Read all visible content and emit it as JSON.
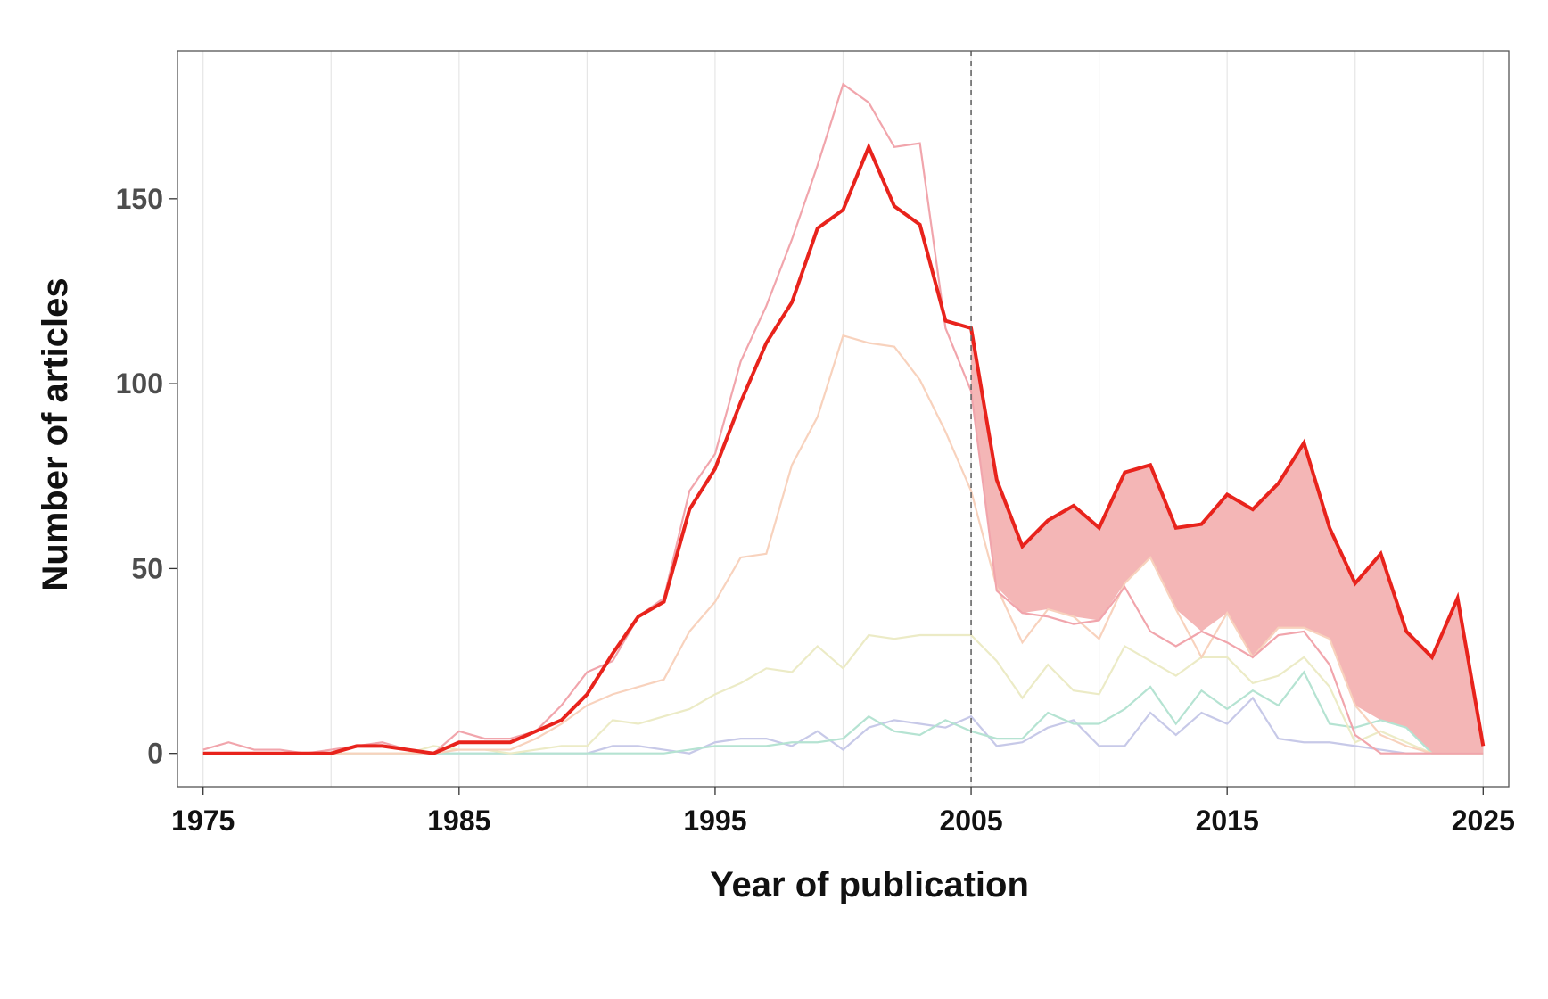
{
  "chart_data": {
    "type": "line",
    "title": "",
    "xlabel": "Year of publication",
    "ylabel": "Number of articles",
    "xlim": [
      1974,
      2026
    ],
    "ylim": [
      -9,
      190
    ],
    "xticks": [
      1975,
      1985,
      1995,
      2005,
      2015,
      2025
    ],
    "yticks": [
      0,
      50,
      100,
      150
    ],
    "grid": "vertical",
    "legend": "none",
    "annotations": [
      {
        "type": "vline",
        "x": 2005,
        "style": "dashed",
        "color": "#666666"
      },
      {
        "type": "band",
        "between": [
          "total",
          "top-lower-series"
        ],
        "x_from": 2005,
        "color": "#f4b6b6"
      }
    ],
    "x": [
      1975,
      1976,
      1977,
      1978,
      1979,
      1980,
      1981,
      1982,
      1983,
      1984,
      1985,
      1986,
      1987,
      1988,
      1989,
      1990,
      1991,
      1992,
      1993,
      1994,
      1995,
      1996,
      1997,
      1998,
      1999,
      2000,
      2001,
      2002,
      2003,
      2004,
      2005,
      2006,
      2007,
      2008,
      2009,
      2010,
      2011,
      2012,
      2013,
      2014,
      2015,
      2016,
      2017,
      2018,
      2019,
      2020,
      2021,
      2022,
      2023,
      2024,
      2025
    ],
    "series": [
      {
        "key": "purple",
        "color": "#c7c9e8",
        "width": 2.2,
        "values": [
          0,
          0,
          0,
          0,
          0,
          0,
          0,
          0,
          0,
          0,
          0,
          0,
          0,
          0,
          0,
          0,
          2,
          2,
          1,
          0,
          3,
          4,
          4,
          2,
          6,
          1,
          7,
          9,
          8,
          7,
          10,
          2,
          3,
          7,
          9,
          2,
          2,
          11,
          5,
          11,
          8,
          15,
          4,
          3,
          3,
          2,
          1,
          0,
          0,
          0,
          0
        ]
      },
      {
        "key": "green",
        "color": "#b5e3d2",
        "width": 2.2,
        "values": [
          0,
          0,
          0,
          0,
          0,
          0,
          0,
          0,
          0,
          0,
          0,
          0,
          0,
          0,
          0,
          0,
          0,
          0,
          0,
          1,
          2,
          2,
          2,
          3,
          3,
          4,
          10,
          6,
          5,
          9,
          6,
          4,
          4,
          11,
          8,
          8,
          12,
          18,
          8,
          17,
          12,
          17,
          13,
          22,
          8,
          7,
          9,
          7,
          0,
          0,
          0
        ]
      },
      {
        "key": "yellow",
        "color": "#ecebc6",
        "width": 2.2,
        "values": [
          0,
          0,
          0,
          0,
          0,
          0,
          0,
          0,
          0,
          2,
          1,
          1,
          0,
          1,
          2,
          2,
          9,
          8,
          10,
          12,
          16,
          19,
          23,
          22,
          29,
          23,
          32,
          31,
          32,
          32,
          32,
          25,
          15,
          24,
          17,
          16,
          29,
          25,
          21,
          26,
          26,
          19,
          21,
          26,
          18,
          3,
          6,
          3,
          0,
          0,
          0
        ]
      },
      {
        "key": "peach",
        "color": "#f8d2bd",
        "width": 2.2,
        "values": [
          0,
          0,
          0,
          0,
          0,
          0,
          0,
          0,
          0,
          0,
          1,
          1,
          1,
          4,
          8,
          13,
          16,
          18,
          20,
          33,
          41,
          53,
          54,
          78,
          91,
          113,
          111,
          110,
          101,
          87,
          71,
          45,
          30,
          39,
          37,
          31,
          46,
          53,
          39,
          26,
          38,
          26,
          34,
          34,
          31,
          13,
          5,
          2,
          0,
          0,
          0
        ]
      },
      {
        "key": "pink",
        "color": "#f1a5ac",
        "width": 2.2,
        "values": [
          1,
          3,
          1,
          1,
          0,
          1,
          2,
          3,
          1,
          0,
          6,
          4,
          4,
          6,
          13,
          22,
          25,
          37,
          42,
          71,
          81,
          106,
          121,
          139,
          159,
          181,
          176,
          164,
          165,
          115,
          98,
          44,
          38,
          37,
          35,
          36,
          45,
          33,
          29,
          33,
          30,
          26,
          32,
          33,
          24,
          5,
          0,
          0,
          0,
          0,
          0
        ]
      },
      {
        "key": "total",
        "color": "#e8231c",
        "width": 4,
        "values": [
          0,
          0,
          0,
          0,
          0,
          0,
          2,
          2,
          1,
          0,
          3,
          3,
          3,
          6,
          9,
          16,
          27,
          37,
          41,
          66,
          77,
          95,
          111,
          122,
          142,
          147,
          164,
          148,
          143,
          117,
          115,
          74,
          56,
          63,
          67,
          61,
          76,
          78,
          61,
          62,
          70,
          66,
          73,
          84,
          61,
          46,
          54,
          33,
          26,
          42,
          2
        ]
      }
    ]
  }
}
